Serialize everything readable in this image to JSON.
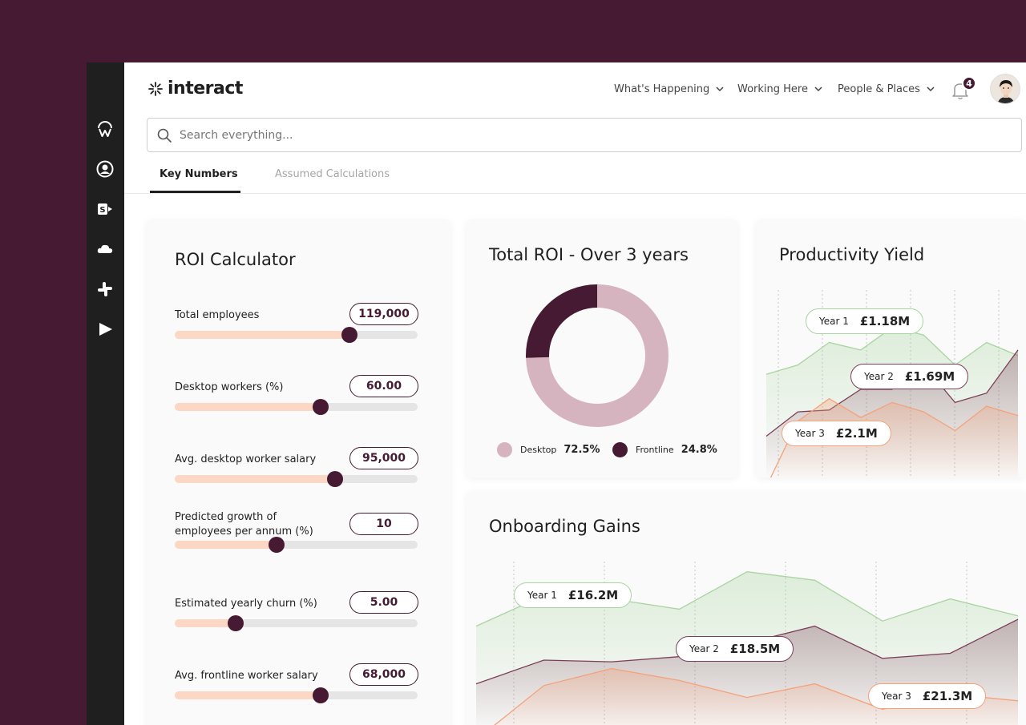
{
  "brand": {
    "name": "interact"
  },
  "nav": {
    "items": [
      {
        "label": "What's Happening"
      },
      {
        "label": "Working Here"
      },
      {
        "label": "People & Places"
      }
    ],
    "notification_count": "4"
  },
  "search": {
    "placeholder": "Search everything..."
  },
  "tabs": [
    {
      "label": "Key Numbers",
      "active": true
    },
    {
      "label": "Assumed Calculations",
      "active": false
    }
  ],
  "roi_calculator": {
    "title": "ROI Calculator",
    "sliders": [
      {
        "label": "Total employees",
        "value": "119,000",
        "level": 0.72
      },
      {
        "label": "Desktop workers (%)",
        "value": "60.00",
        "level": 0.6
      },
      {
        "label": "Avg. desktop worker salary",
        "value": "95,000",
        "level": 0.66
      },
      {
        "label": "Predicted growth of employees per annum (%)",
        "value": "10",
        "level": 0.42
      },
      {
        "label": "Estimated yearly churn (%)",
        "value": "5.00",
        "level": 0.25
      },
      {
        "label": "Avg. frontline worker salary",
        "value": "68,000",
        "level": 0.6
      }
    ]
  },
  "total_roi": {
    "title": "Total ROI - Over 3 years",
    "chart_data": {
      "type": "pie",
      "slices": [
        {
          "name": "Desktop",
          "value": 72.5,
          "label": "72.5%",
          "color": "#d6b4bf"
        },
        {
          "name": "Frontline",
          "value": 24.8,
          "label": "24.8%",
          "color": "#461a32"
        }
      ]
    }
  },
  "productivity_yield": {
    "title": "Productivity Yield",
    "chart_data": {
      "type": "area",
      "series": [
        {
          "name": "Year 1",
          "value_label": "£1.18M",
          "color": "#a8d5a0",
          "values": [
            0.55,
            0.6,
            0.72,
            0.68,
            0.8,
            0.76,
            0.6,
            0.72,
            0.65
          ]
        },
        {
          "name": "Year 2",
          "value_label": "£1.69M",
          "color": "#7c3e59",
          "values": [
            0.22,
            0.35,
            0.36,
            0.47,
            0.47,
            0.6,
            0.4,
            0.45,
            0.68
          ]
        },
        {
          "name": "Year 3",
          "value_label": "£2.1M",
          "color": "#f3a27a",
          "values": [
            -0.05,
            0.3,
            0.42,
            0.32,
            0.4,
            0.35,
            0.25,
            0.38,
            0.33
          ]
        }
      ]
    }
  },
  "onboarding_gains": {
    "title": "Onboarding Gains",
    "chart_data": {
      "type": "area",
      "series": [
        {
          "name": "Year 1",
          "value_label": "£16.2M",
          "color": "#a8d5a0",
          "values": [
            0.62,
            0.8,
            0.78,
            0.72,
            0.94,
            0.89,
            0.65,
            0.78,
            0.68
          ]
        },
        {
          "name": "Year 2",
          "value_label": "£18.5M",
          "color": "#7c3e59",
          "values": [
            0.28,
            0.42,
            0.41,
            0.44,
            0.52,
            0.62,
            0.43,
            0.46,
            0.66
          ]
        },
        {
          "name": "Year 3",
          "value_label": "£21.3M",
          "color": "#f3a27a",
          "values": [
            -0.05,
            0.27,
            0.37,
            0.3,
            0.2,
            0.28,
            0.13,
            0.22,
            0.18
          ]
        }
      ]
    }
  },
  "colors": {
    "brand": "#461a32",
    "slider_fill": "#fcd7c3",
    "track": "#e5e5e5"
  }
}
